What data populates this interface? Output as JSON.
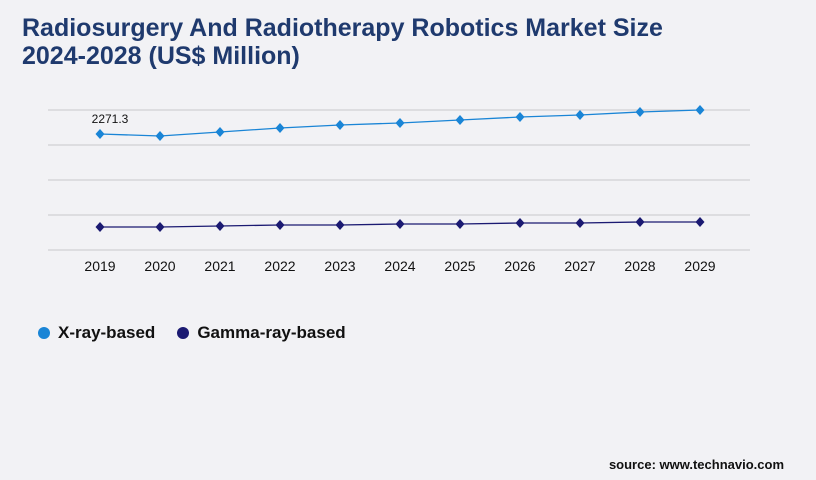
{
  "title": "Radiosurgery And Radiotherapy Robotics Market Size 2024-2028 (US$ Million)",
  "source": "source: www.technavio.com",
  "chart_data": {
    "type": "line",
    "categories": [
      "2019",
      "2020",
      "2021",
      "2022",
      "2023",
      "2024",
      "2025",
      "2026",
      "2027",
      "2028",
      "2029"
    ],
    "series": [
      {
        "name": "X-ray-based",
        "color": "#1a85d6",
        "values": [
          2271.3,
          2232,
          2310,
          2389,
          2447,
          2487,
          2545,
          2604,
          2643,
          2702,
          2741
        ]
      },
      {
        "name": "Gamma-ray-based",
        "color": "#1b1a72",
        "values": [
          450,
          450,
          470,
          490,
          490,
          509,
          509,
          529,
          529,
          548,
          548
        ]
      }
    ],
    "data_labels": [
      {
        "series": 0,
        "index": 0,
        "text": "2271.3"
      }
    ],
    "ylim": [
      0,
      2741
    ],
    "grid": true,
    "legend": "bottom-left"
  }
}
